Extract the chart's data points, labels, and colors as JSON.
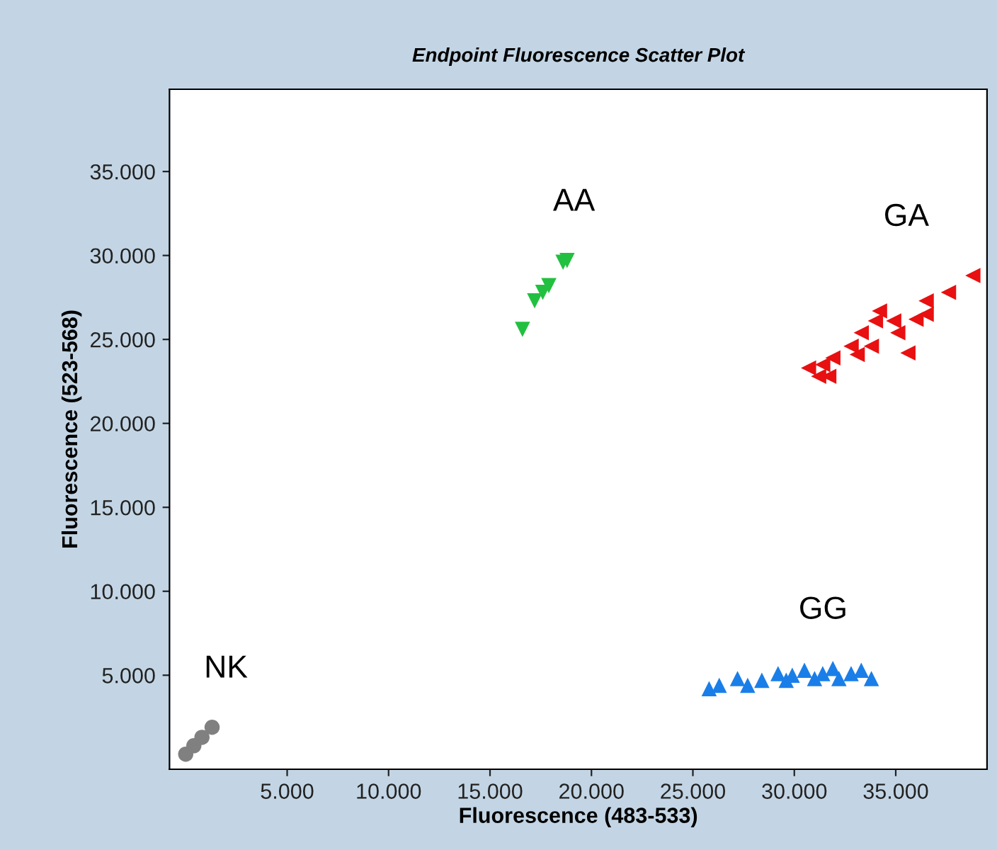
{
  "chart_data": {
    "type": "scatter",
    "title": "Endpoint Fluorescence Scatter Plot",
    "xlabel": "Fluorescence (483-533)",
    "ylabel": "Fluorescence (523-568)",
    "xlim": [
      -800,
      39500
    ],
    "ylim": [
      -600,
      39900
    ],
    "xticks": [
      {
        "value": 5000,
        "label": "5.000"
      },
      {
        "value": 10000,
        "label": "10.000"
      },
      {
        "value": 15000,
        "label": "15.000"
      },
      {
        "value": 20000,
        "label": "20.000"
      },
      {
        "value": 25000,
        "label": "25.000"
      },
      {
        "value": 30000,
        "label": "30.000"
      },
      {
        "value": 35000,
        "label": "35.000"
      }
    ],
    "yticks": [
      {
        "value": 5000,
        "label": "5.000"
      },
      {
        "value": 10000,
        "label": "10.000"
      },
      {
        "value": 15000,
        "label": "15.000"
      },
      {
        "value": 20000,
        "label": "20.000"
      },
      {
        "value": 25000,
        "label": "25.000"
      },
      {
        "value": 30000,
        "label": "30.000"
      },
      {
        "value": 35000,
        "label": "35.000"
      }
    ],
    "grid": false,
    "legend": false,
    "series": [
      {
        "name": "AA",
        "color": "#22c040",
        "marker": "triangle-down",
        "x": [
          16600,
          17200,
          17600,
          17900,
          18600,
          18800
        ],
        "values": [
          25600,
          27300,
          27800,
          28200,
          29600,
          29700
        ]
      },
      {
        "name": "GA",
        "color": "#e81010",
        "marker": "triangle-left",
        "x": [
          38800,
          37600,
          36500,
          36500,
          36000,
          35100,
          34200,
          33800,
          35600,
          33300,
          32800,
          33100,
          31900,
          31400,
          30700,
          31700,
          31200,
          34000,
          34900
        ],
        "values": [
          28800,
          27800,
          27300,
          26500,
          26200,
          25400,
          26700,
          24600,
          24200,
          25400,
          24600,
          24100,
          23900,
          23500,
          23300,
          22800,
          22800,
          26100,
          26100
        ]
      },
      {
        "name": "GG",
        "color": "#1a7ee8",
        "marker": "triangle",
        "x": [
          25800,
          26300,
          27200,
          27700,
          28400,
          29200,
          29600,
          29900,
          30500,
          31000,
          31400,
          31900,
          32200,
          32800,
          33300,
          33800
        ],
        "values": [
          4200,
          4400,
          4800,
          4400,
          4700,
          5100,
          4700,
          5000,
          5300,
          4800,
          5100,
          5400,
          4800,
          5100,
          5300,
          4800
        ]
      },
      {
        "name": "NK",
        "color": "#808080",
        "marker": "circle",
        "x": [
          0,
          400,
          800,
          1300
        ],
        "values": [
          300,
          800,
          1300,
          1900
        ]
      }
    ]
  }
}
